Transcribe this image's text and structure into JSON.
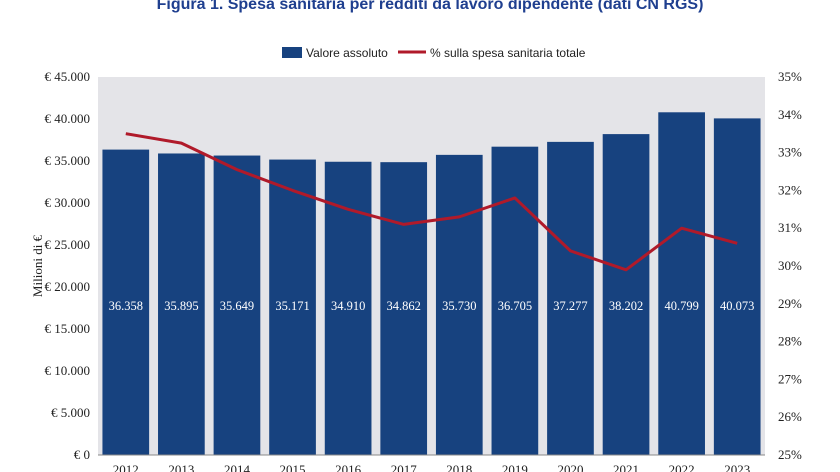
{
  "chart_data": {
    "type": "bar",
    "title": "Figura 1. Spesa sanitaria per redditi da lavoro dipendente (dati CN RGS)",
    "categories": [
      "2012",
      "2013",
      "2014",
      "2015",
      "2016",
      "2017",
      "2018",
      "2019",
      "2020",
      "2021",
      "2022",
      "2023"
    ],
    "series": [
      {
        "name": "Valore assoluto",
        "type": "bar",
        "axis": "left",
        "color": "#17427f",
        "values": [
          36358,
          35895,
          35649,
          35171,
          34910,
          34862,
          35730,
          36705,
          37277,
          38202,
          40799,
          40073
        ],
        "labels": [
          "36.358",
          "35.895",
          "35.649",
          "35.171",
          "34.910",
          "34.862",
          "35.730",
          "36.705",
          "37.277",
          "38.202",
          "40.799",
          "40.073"
        ]
      },
      {
        "name": "% sulla spesa sanitaria totale",
        "type": "line",
        "axis": "right",
        "color": "#b01a2a",
        "values": [
          33.5,
          33.25,
          32.55,
          32.0,
          31.5,
          31.1,
          31.3,
          31.8,
          30.4,
          29.9,
          31.0,
          30.6
        ]
      }
    ],
    "ylabel": "Milioni di €",
    "ylim": [
      0,
      45000
    ],
    "y_ticks": [
      "€ 0",
      "€ 5.000",
      "€ 10.000",
      "€ 15.000",
      "€ 20.000",
      "€ 25.000",
      "€ 30.000",
      "€ 35.000",
      "€ 40.000",
      "€ 45.000"
    ],
    "y2lim": [
      25,
      35
    ],
    "y2_ticks": [
      "25%",
      "26%",
      "27%",
      "28%",
      "29%",
      "30%",
      "31%",
      "32%",
      "33%",
      "34%",
      "35%"
    ],
    "legend_position": "top-center",
    "grid": false,
    "colors": {
      "plot_background": "#e4e4e8",
      "title": "#1f3f8f"
    }
  }
}
